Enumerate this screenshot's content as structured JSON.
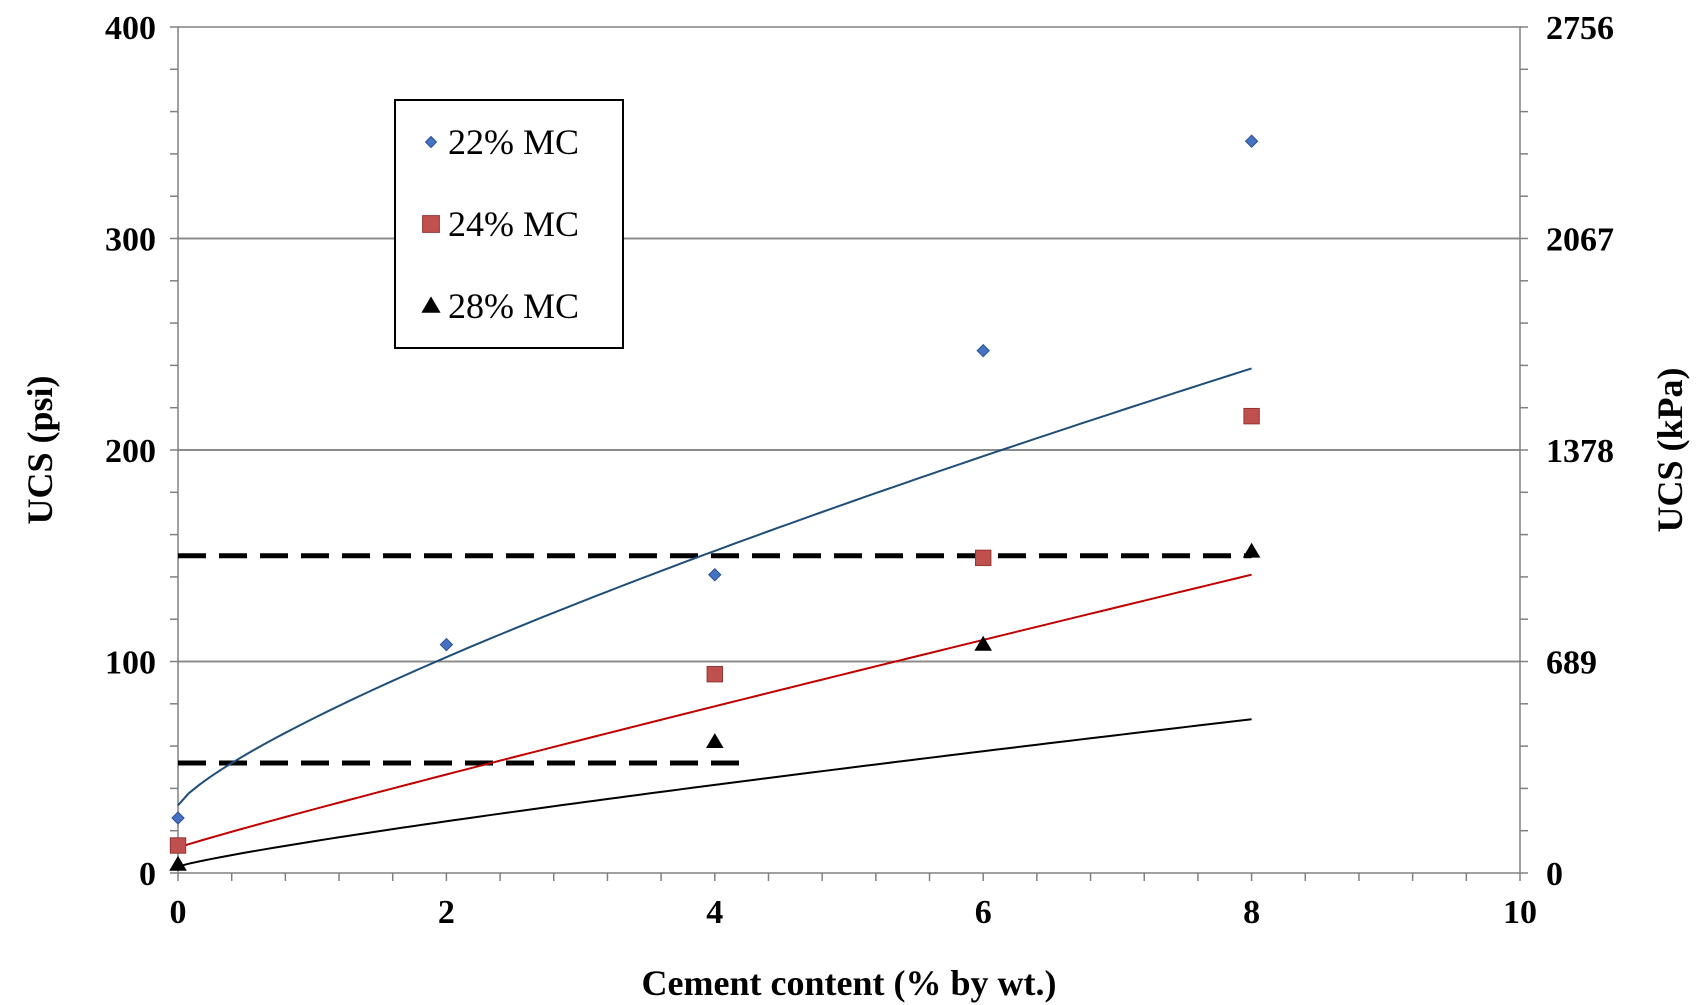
{
  "chart_data": {
    "type": "scatter",
    "title": "",
    "xlabel": "Cement content (% by wt.)",
    "ylabel": "UCS (psi)",
    "y2label": "UCS (kPa)",
    "xlim": [
      0,
      10
    ],
    "ylim": [
      0,
      400
    ],
    "xticks": [
      0,
      2,
      4,
      6,
      8,
      10
    ],
    "yticks": [
      0,
      100,
      200,
      300,
      400
    ],
    "y2ticks": [
      0,
      689,
      1378,
      2067,
      2756
    ],
    "grid": "horizontal",
    "legend_position": "top-left",
    "series": [
      {
        "name": "22% MC",
        "marker": "diamond",
        "color": "#4472C4",
        "trend_color": "#1F4E79",
        "x": [
          0,
          2,
          4,
          6,
          8
        ],
        "y": [
          26,
          108,
          141,
          247,
          346
        ],
        "trend": [
          32,
          40.8,
          0.78
        ]
      },
      {
        "name": "24% MC",
        "marker": "square",
        "color": "#C0504D",
        "trend_color": "#C00000",
        "x": [
          0,
          4,
          6,
          8
        ],
        "y": [
          13,
          94,
          149,
          216
        ],
        "trend": [
          12,
          17.9,
          0.95
        ]
      },
      {
        "name": "28% MC",
        "marker": "triangle",
        "color": "#000000",
        "trend_color": "#000000",
        "x": [
          0,
          4,
          6,
          8
        ],
        "y": [
          4,
          62,
          108,
          152
        ],
        "trend": [
          3,
          11.9,
          0.85
        ]
      }
    ],
    "reference_lines": [
      {
        "y": 150,
        "x_from": 0,
        "x_to": 8,
        "style": "dashed",
        "color": "#000000"
      },
      {
        "y": 52,
        "x_from": 0,
        "x_to": 4.2,
        "style": "dashed",
        "color": "#000000"
      }
    ]
  }
}
